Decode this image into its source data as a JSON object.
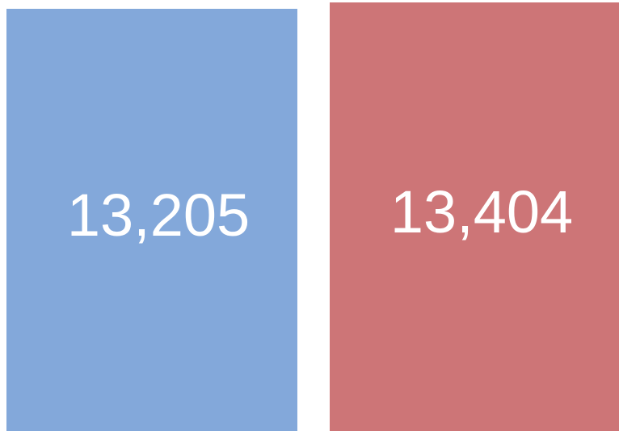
{
  "chart_data": {
    "type": "bar",
    "values": [
      13205,
      13404
    ],
    "value_labels": [
      "13,205",
      "13,404"
    ],
    "colors": [
      "#83a8da",
      "#cd7577"
    ],
    "ylim": [
      0,
      13480
    ]
  }
}
